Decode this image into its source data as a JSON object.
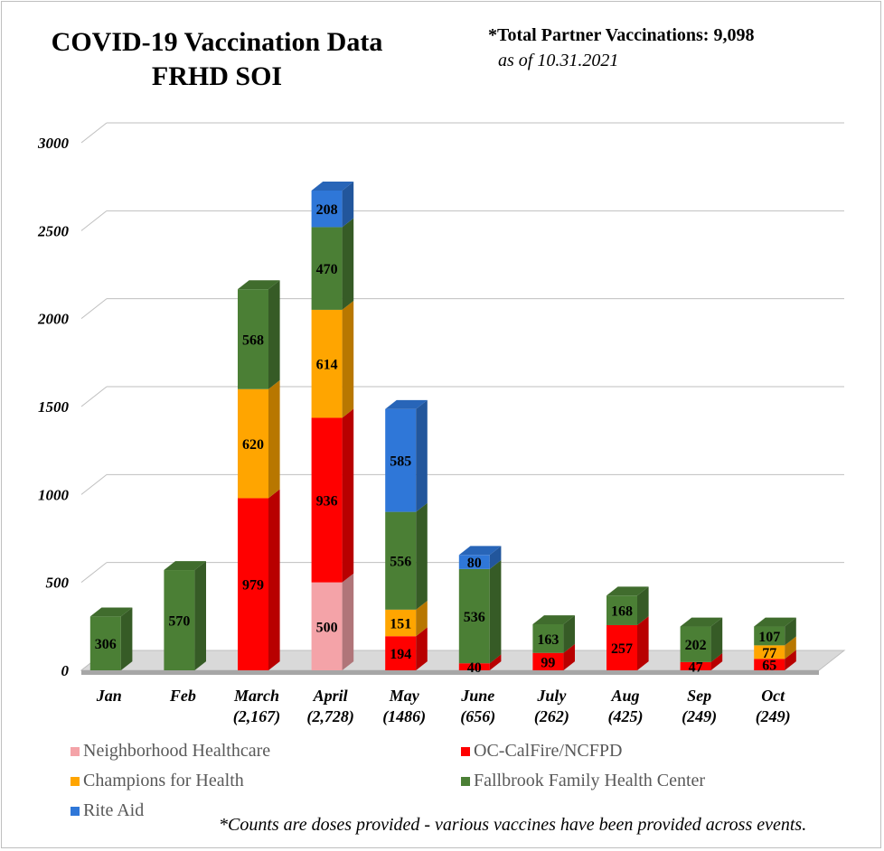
{
  "header": {
    "title_line1": "COVID-19 Vaccination Data",
    "title_line2": "FRHD SOI",
    "total_label": "*Total Partner Vaccinations",
    "total_value": ": 9,098",
    "as_of": "as of 10.31.2021"
  },
  "footnote": "*Counts are doses provided - various vaccines have been provided across events.",
  "colors": {
    "Neighborhood Healthcare": "#f4a3a8",
    "OC-CalFire/NCFPD": "#ff0000",
    "Champions for Health": "#ffa500",
    "Fallbrook Family Health Center": "#4b7f35",
    "Rite Aid": "#2f77d8"
  },
  "chart_data": {
    "type": "bar",
    "stacked": true,
    "three_d": true,
    "categories": [
      "Jan",
      "Feb",
      "March",
      "April",
      "May",
      "June",
      "July",
      "Aug",
      "Sep",
      "Oct"
    ],
    "category_totals": [
      "",
      "",
      "(2,167)",
      "(2,728)",
      "(1486)",
      "(656)",
      "(262)",
      "(425)",
      "(249)",
      "(249)"
    ],
    "series": [
      {
        "name": "Neighborhood Healthcare",
        "values": [
          0,
          0,
          0,
          500,
          0,
          0,
          0,
          0,
          0,
          0
        ]
      },
      {
        "name": "OC-CalFire/NCFPD",
        "values": [
          0,
          0,
          979,
          936,
          194,
          40,
          99,
          257,
          47,
          65
        ]
      },
      {
        "name": "Champions for Health",
        "values": [
          0,
          0,
          620,
          614,
          151,
          0,
          0,
          0,
          0,
          77
        ]
      },
      {
        "name": "Fallbrook Family Health Center",
        "values": [
          306,
          570,
          568,
          470,
          556,
          536,
          163,
          168,
          202,
          107
        ]
      },
      {
        "name": "Rite Aid",
        "values": [
          0,
          0,
          0,
          208,
          585,
          80,
          0,
          0,
          0,
          0
        ]
      }
    ],
    "ylim": [
      0,
      3000
    ],
    "yticks": [
      "0",
      "500",
      "1000",
      "1500",
      "2000",
      "2500",
      "3000"
    ],
    "grid": true,
    "legend_position": "bottom"
  }
}
